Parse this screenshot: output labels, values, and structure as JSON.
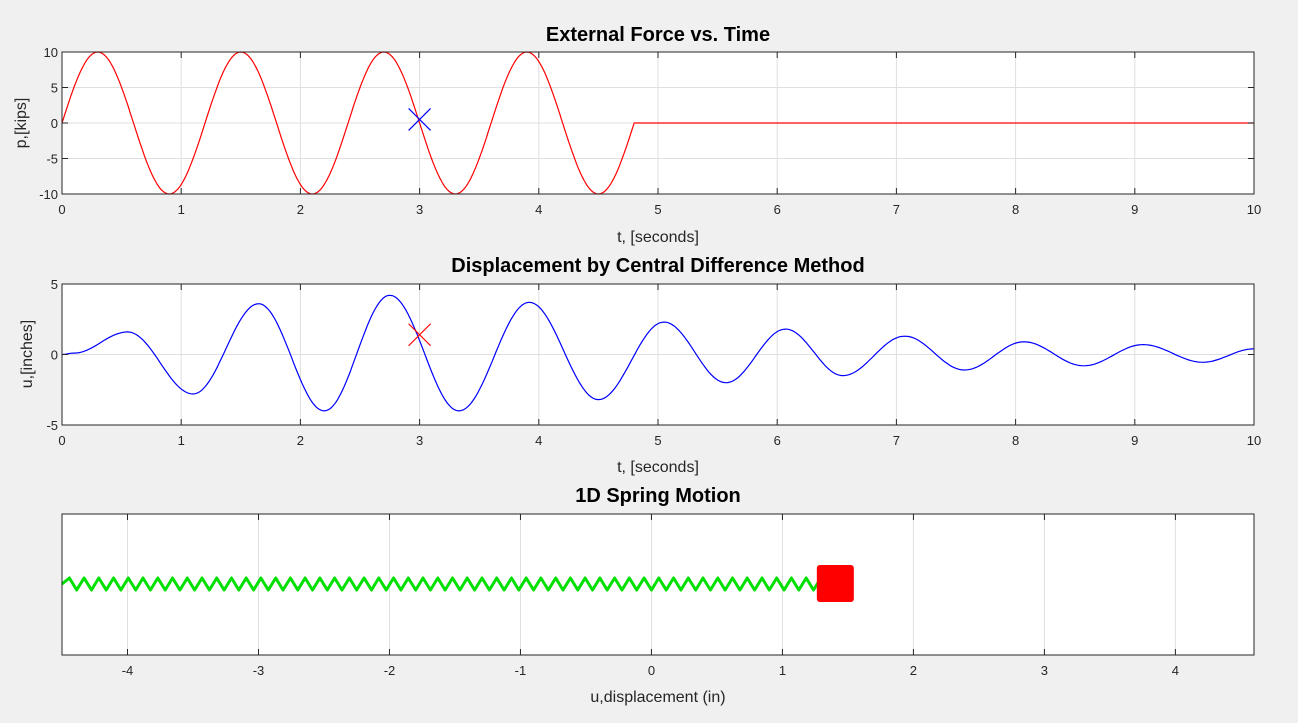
{
  "chart_data": [
    {
      "type": "line",
      "title": "External Force vs. Time",
      "xlabel": "t, [seconds]",
      "ylabel": "p,[kips]",
      "xlim": [
        0,
        10
      ],
      "ylim": [
        -10,
        10
      ],
      "xticks": [
        "0",
        "1",
        "2",
        "3",
        "4",
        "5",
        "6",
        "7",
        "8",
        "9",
        "10"
      ],
      "yticks": [
        "10",
        "5",
        "0",
        "-5",
        "-10"
      ],
      "grid": true,
      "series": [
        {
          "color": "#ff0000",
          "x": [
            0,
            0.1,
            0.2,
            0.3,
            0.4,
            0.5,
            0.6,
            0.7,
            0.8,
            0.9,
            1.0,
            1.1,
            1.2,
            1.3,
            1.4,
            1.5,
            1.6,
            1.7,
            1.8,
            1.9,
            2.0,
            2.1,
            2.2,
            2.3,
            2.4,
            2.5,
            2.6,
            2.7,
            2.8,
            2.9,
            3.0,
            3.1,
            3.2,
            3.3,
            3.4,
            3.5,
            3.6,
            3.7,
            3.8,
            3.9,
            4.0,
            4.1,
            4.2,
            4.3,
            4.4,
            4.5,
            4.6,
            4.7,
            4.8,
            5.0,
            6.0,
            7.0,
            8.0,
            9.0,
            10.0
          ],
          "y": [
            0,
            5,
            8.7,
            10,
            8.7,
            5,
            0,
            -5,
            -8.7,
            -10,
            -8.7,
            -5,
            0,
            5,
            8.7,
            10,
            8.7,
            5,
            0,
            -5,
            -8.7,
            -10,
            -8.7,
            -5,
            0,
            5,
            8.7,
            10,
            8.7,
            5,
            0,
            -5,
            -8.7,
            -10,
            -8.7,
            -5,
            0,
            5,
            8.7,
            10,
            8.7,
            5,
            0,
            -5,
            -8.7,
            -10,
            -8.7,
            -5,
            0,
            0,
            0,
            0,
            0,
            0,
            0
          ]
        }
      ],
      "marker": {
        "x": 3,
        "y": 0.5,
        "color": "#0000ff",
        "symbol": "x"
      }
    },
    {
      "type": "line",
      "title": "Displacement by Central Difference Method",
      "xlabel": "t, [seconds]",
      "ylabel": "u,[inches]",
      "xlim": [
        0,
        10
      ],
      "ylim": [
        -5,
        5
      ],
      "xticks": [
        "0",
        "1",
        "2",
        "3",
        "4",
        "5",
        "6",
        "7",
        "8",
        "9",
        "10"
      ],
      "yticks": [
        "5",
        "0",
        "-5"
      ],
      "grid": true,
      "series": [
        {
          "color": "#0000ff",
          "peaks": [
            [
              0,
              0
            ],
            [
              0.1,
              0.1
            ],
            [
              0.55,
              1.6
            ],
            [
              1.1,
              -2.8
            ],
            [
              1.65,
              3.6
            ],
            [
              2.2,
              -4.0
            ],
            [
              2.75,
              4.2
            ],
            [
              3.33,
              -4.0
            ],
            [
              3.92,
              3.7
            ],
            [
              4.5,
              -3.2
            ],
            [
              5.05,
              2.3
            ],
            [
              5.57,
              -2.0
            ],
            [
              6.07,
              1.8
            ],
            [
              6.55,
              -1.5
            ],
            [
              7.07,
              1.3
            ],
            [
              7.57,
              -1.1
            ],
            [
              8.07,
              0.9
            ],
            [
              8.57,
              -0.8
            ],
            [
              9.07,
              0.7
            ],
            [
              9.57,
              -0.55
            ],
            [
              10,
              0.4
            ]
          ]
        }
      ],
      "marker": {
        "x": 3,
        "y": 1.4,
        "color": "#ff0000",
        "symbol": "x"
      }
    },
    {
      "type": "line",
      "title": "1D Spring Motion",
      "xlabel": "u,displacement (in)",
      "xlim": [
        -4.5,
        4.6
      ],
      "xticks": [
        "-4",
        "-3",
        "-2",
        "-1",
        "0",
        "1",
        "2",
        "3",
        "4"
      ],
      "grid": true,
      "spring": {
        "from": -4.5,
        "to": 1.35,
        "color": "#00e000",
        "coils": 52
      },
      "mass": {
        "x": 1.4,
        "color": "#ff0000"
      }
    }
  ]
}
